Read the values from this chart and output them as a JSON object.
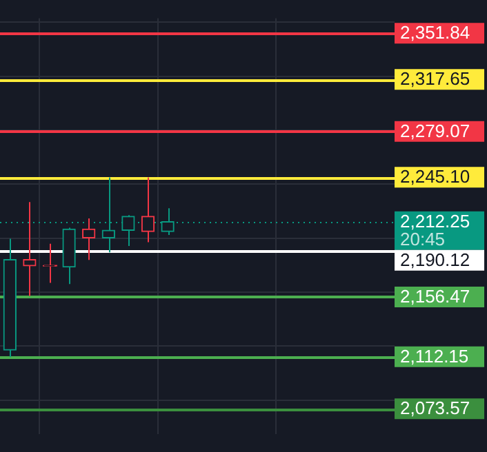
{
  "chart_data": {
    "type": "candlestick",
    "categories": [
      null,
      null,
      null,
      null,
      null,
      null,
      null,
      null,
      null,
      null,
      null,
      null,
      null,
      null,
      null,
      null,
      null,
      null,
      null,
      null
    ],
    "ohlc": [
      [
        2117.1,
        2199.5,
        2111.8,
        2184.2
      ],
      [
        2184.2,
        2226.8,
        2157.2,
        2179.5
      ],
      [
        2179.6,
        2195.8,
        2166.9,
        2179.4
      ],
      [
        2178.6,
        2207.7,
        2166.0,
        2206.8
      ],
      [
        2206.8,
        2214.6,
        2183.8,
        2200.2
      ],
      [
        2200.2,
        2245.0,
        2189.5,
        2205.8
      ],
      [
        2205.8,
        2217.1,
        2194.2,
        2216.2
      ],
      [
        2216.2,
        2245.0,
        2197.0,
        2204.9
      ],
      [
        2204.9,
        2222.1,
        2202.3,
        2212.25
      ],
      null,
      null,
      null,
      null,
      null,
      null,
      null,
      null,
      null,
      null,
      null
    ],
    "colors": [
      "#089981",
      "#f23645",
      "#f23645",
      "#089981",
      "#f23645",
      "#089981",
      "#089981",
      "#f23645",
      "#089981",
      null,
      null,
      null,
      null,
      null,
      null,
      null,
      null,
      null,
      null,
      null
    ],
    "ylim": [
      2055,
      2363
    ],
    "yticks": [
      {
        "value": 2080,
        "label": null
      },
      {
        "value": 2120,
        "label": null
      },
      {
        "value": 2160,
        "label": null
      },
      {
        "value": 2200,
        "label": null
      },
      {
        "value": 2240,
        "label": null
      },
      {
        "value": 2280,
        "label": null
      },
      {
        "value": 2320,
        "label": null
      },
      {
        "value": 2360,
        "label": null
      }
    ],
    "grid": true,
    "ref_lines": [
      {
        "axis": "y",
        "value": 2351.84,
        "label": "2,351.84",
        "color": "#f23645"
      },
      {
        "axis": "y",
        "value": 2317.65,
        "label": "2,317.65",
        "color": "#ffeb3b"
      },
      {
        "axis": "y",
        "value": 2279.07,
        "label": "2,279.07",
        "color": "#f23645"
      },
      {
        "axis": "y",
        "value": 2245.1,
        "label": "2,245.10",
        "color": "#ffeb3b"
      },
      {
        "axis": "y",
        "value": 2212.25,
        "label": "2,212.25",
        "color": "#089981",
        "line_style": "dotted"
      },
      {
        "axis": "y",
        "value": 2190.12,
        "label": "2,190.12",
        "color": "#ffffff"
      },
      {
        "axis": "y",
        "value": 2156.47,
        "label": "2,156.47",
        "color": "#4caf50"
      },
      {
        "axis": "y",
        "value": 2112.15,
        "label": "2,112.15",
        "color": "#4caf50"
      },
      {
        "axis": "y",
        "value": 2073.57,
        "label": "2,073.57",
        "color": "#3b8f3e"
      }
    ],
    "annotations": [
      "20:45"
    ],
    "legend": false
  }
}
